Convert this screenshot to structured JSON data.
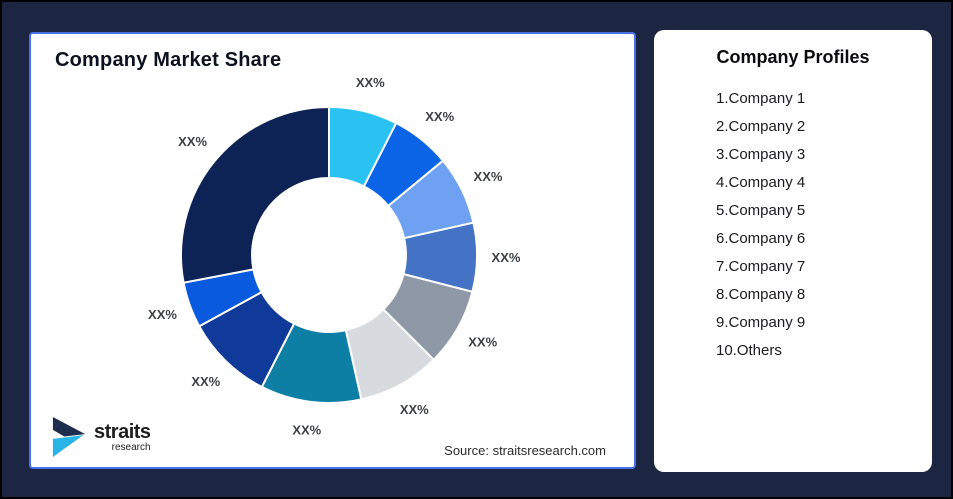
{
  "theme": {
    "background": "#1C2541",
    "outer_border": "#000000",
    "card_background": "#FFFFFF",
    "chart_card_border": "#4A72E8"
  },
  "chart_card": {
    "title": "Company Market Share",
    "source": "Source: straitsresearch.com"
  },
  "logo": {
    "brand": "straits",
    "sub": "research",
    "mark_dark": "#1E2C4E",
    "mark_cyan": "#29B4E6"
  },
  "profiles_card": {
    "title": "Company Profiles",
    "items": [
      "1.Company 1",
      "2.Company 2",
      "3.Company 3",
      "4.Company 4",
      "5.Company 5",
      "6.Company 6",
      "7.Company 7",
      "8.Company 8",
      "9.Company 9",
      "10.Others"
    ]
  },
  "chart_data": {
    "type": "pie",
    "variant": "donut",
    "title": "Company Market Share",
    "labels": [
      "XX%",
      "XX%",
      "XX%",
      "XX%",
      "XX%",
      "XX%",
      "XX%",
      "XX%",
      "XX%",
      "XX%"
    ],
    "values": [
      7.5,
      6.5,
      7.5,
      7.5,
      8.5,
      9,
      11,
      9.5,
      5,
      28
    ],
    "value_note": "shares estimated from arc angles; on-chart data labels show placeholder text XX%",
    "colors": [
      "#29C2F1",
      "#0B63E5",
      "#6FA1F2",
      "#4472C4",
      "#8F98A7",
      "#D7DADF",
      "#0D7FA5",
      "#0F3A99",
      "#0A5AE0",
      "#0E2355"
    ],
    "start_angle_deg": 0,
    "direction": "clockwise",
    "inner_radius_ratio": 0.52,
    "slice_gap_color": "#FFFFFF",
    "legend": "none",
    "source": "Source: straitsresearch.com"
  }
}
